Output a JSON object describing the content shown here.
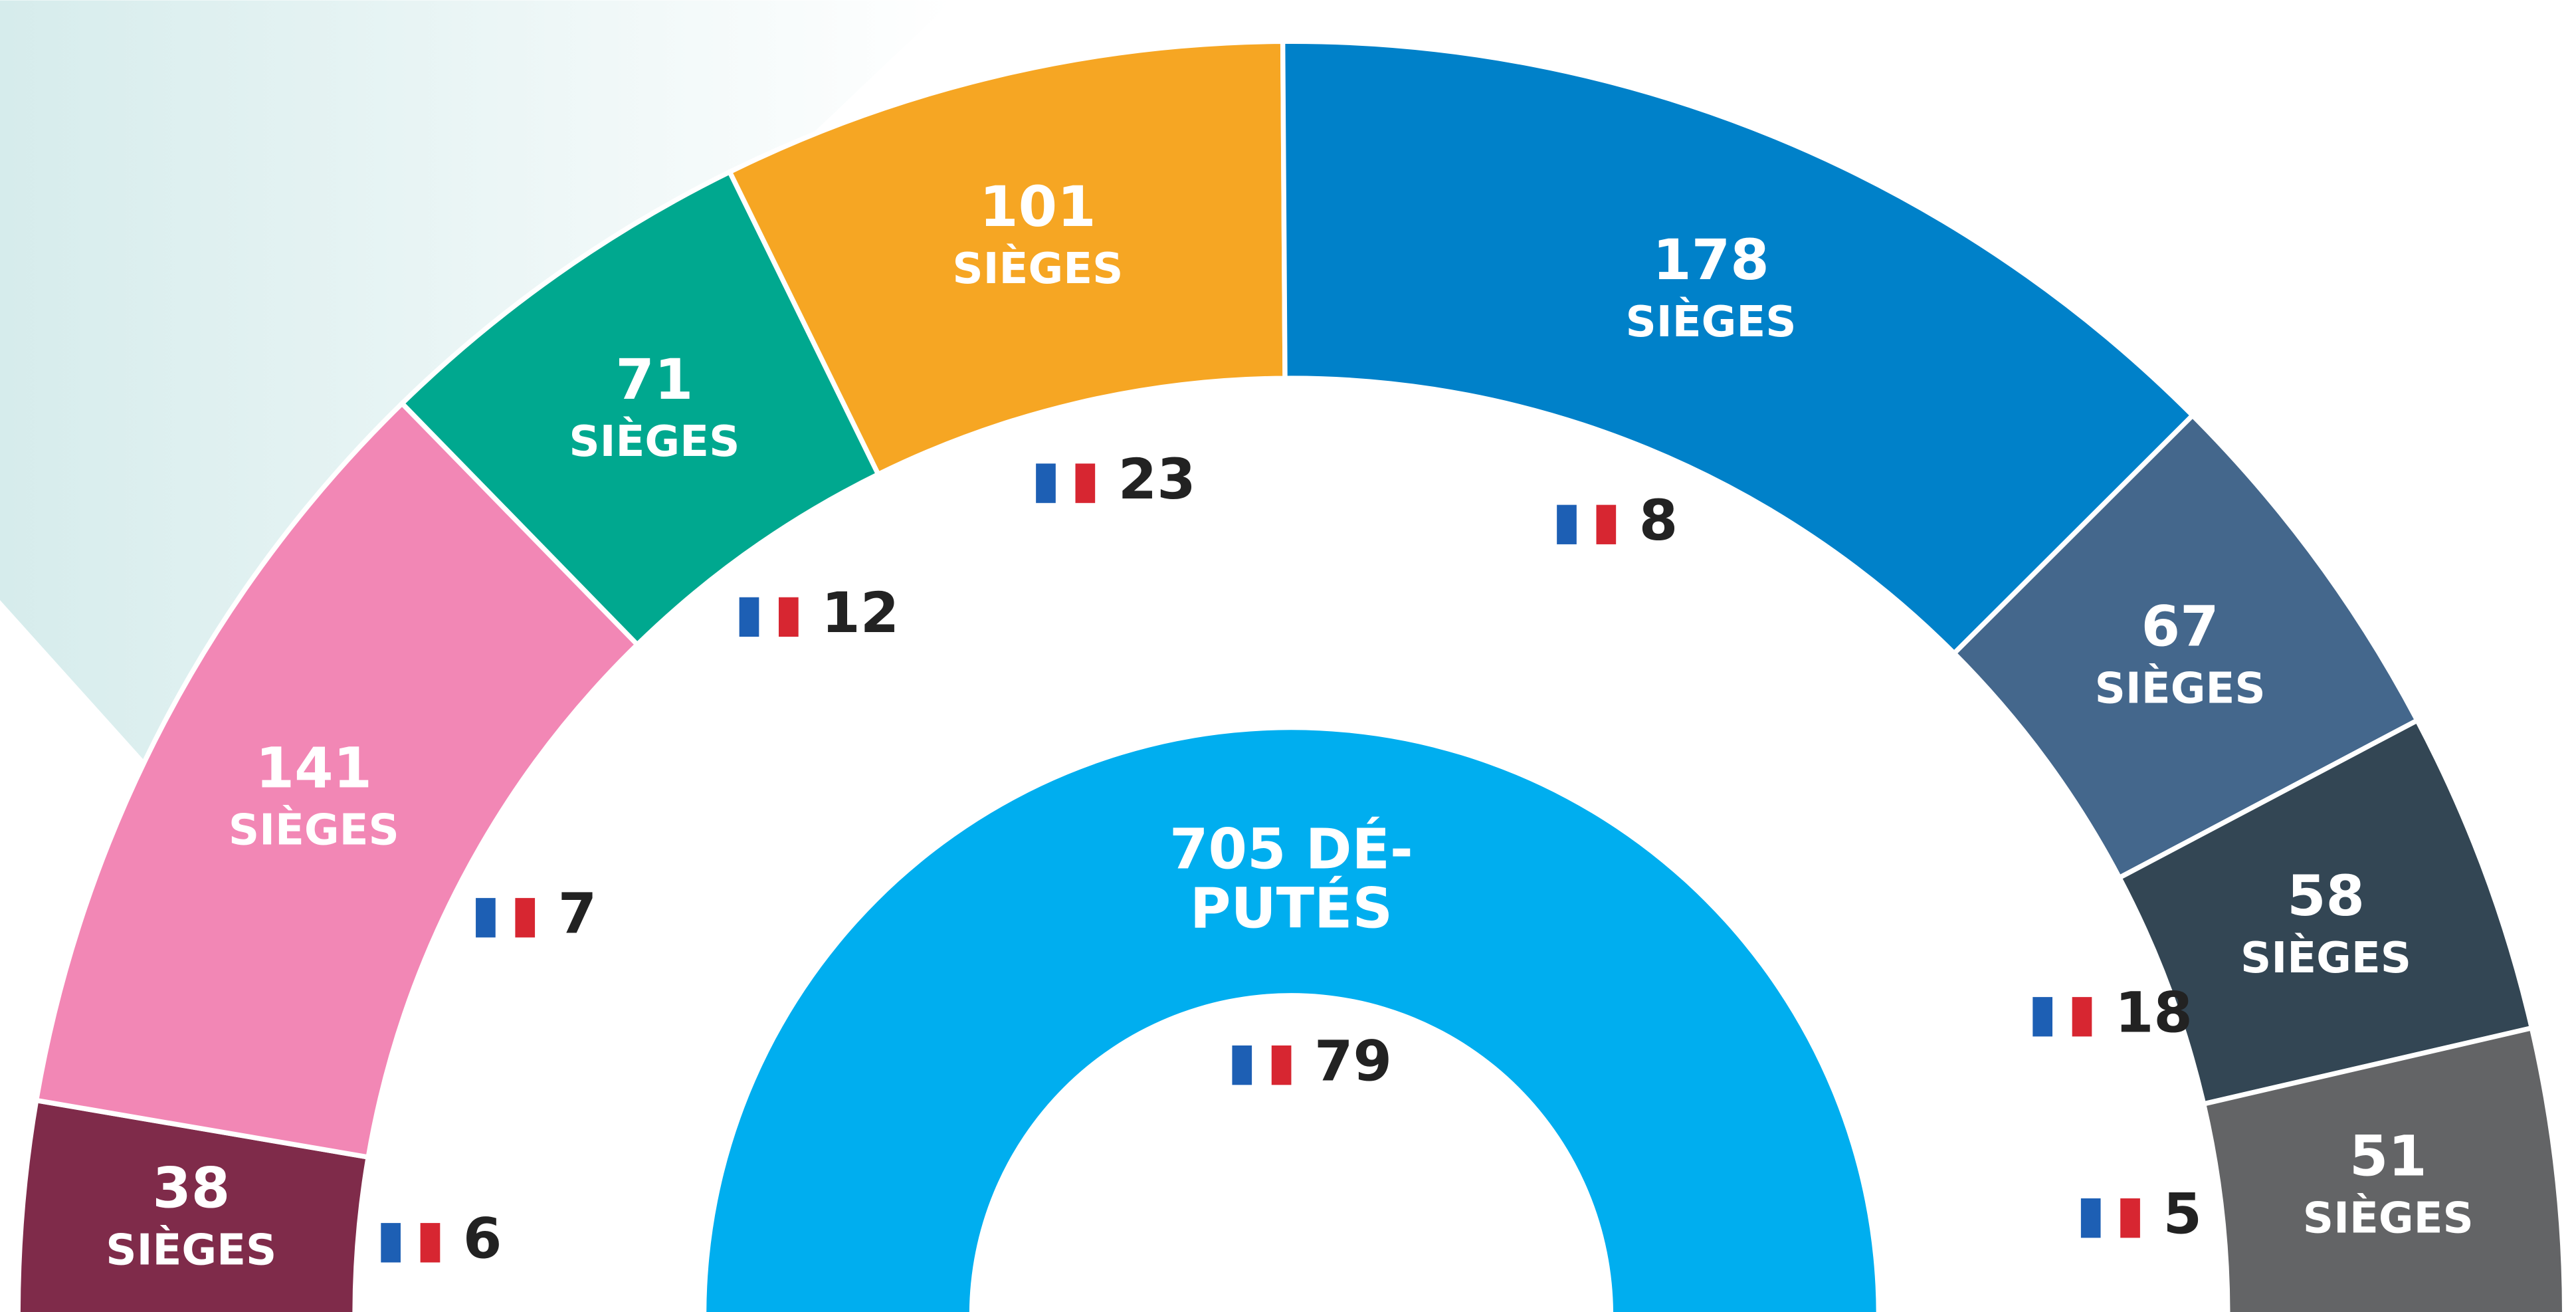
{
  "chart_data": {
    "type": "hemicycle",
    "values": [
      38,
      141,
      71,
      101,
      178,
      67,
      58,
      51
    ],
    "colors": [
      "#7f2b4a",
      "#f287b5",
      "#00a88f",
      "#f6a623",
      "#0081c9",
      "#44678c",
      "#334654",
      "#636466"
    ],
    "value_unit": "SIÈGES",
    "flag_values": [
      6,
      7,
      12,
      23,
      8,
      null,
      18,
      5
    ],
    "center": {
      "label_lines": [
        "705 DÉ-",
        "PUTÉS"
      ],
      "flag_value": 79,
      "color": "#00aeef"
    }
  }
}
